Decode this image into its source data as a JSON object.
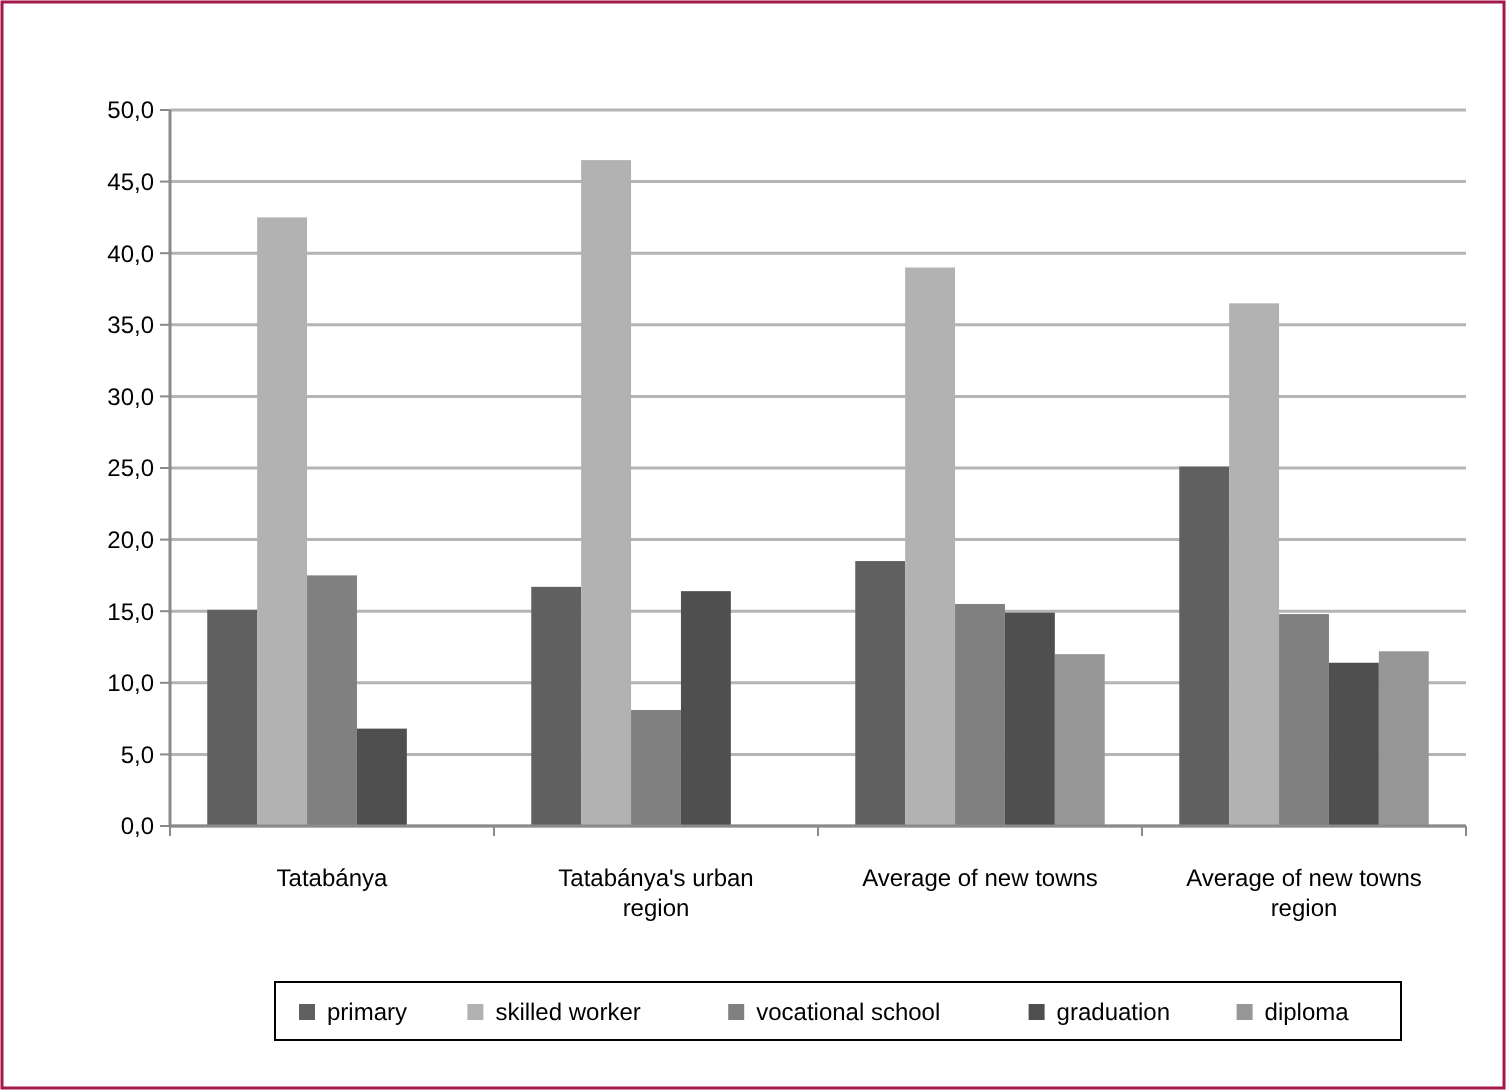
{
  "chart_data": {
    "type": "bar",
    "categories": [
      "Tatabánya",
      "Tatabánya's urban region",
      "Average of new towns",
      "Average of new towns region"
    ],
    "series": [
      {
        "name": "primary",
        "color": "#606060",
        "values": [
          15.1,
          16.7,
          18.5,
          25.1
        ]
      },
      {
        "name": "skilled worker",
        "color": "#b2b2b2",
        "values": [
          42.5,
          46.5,
          39.0,
          36.5
        ]
      },
      {
        "name": "vocational school",
        "color": "#808080",
        "values": [
          17.5,
          8.1,
          15.5,
          14.8
        ]
      },
      {
        "name": "graduation",
        "color": "#4f4f4f",
        "values": [
          6.8,
          16.4,
          14.9,
          11.4
        ]
      },
      {
        "name": "diploma",
        "color": "#969696",
        "values": [
          null,
          null,
          12.0,
          12.2
        ]
      }
    ],
    "ylim": [
      0,
      50
    ],
    "yticks": [
      {
        "value": 0,
        "label": "0,0"
      },
      {
        "value": 5,
        "label": "5,0"
      },
      {
        "value": 10,
        "label": "10,0"
      },
      {
        "value": 15,
        "label": "15,0"
      },
      {
        "value": 20,
        "label": "20,0"
      },
      {
        "value": 25,
        "label": "25,0"
      },
      {
        "value": 30,
        "label": "30,0"
      },
      {
        "value": 35,
        "label": "35,0"
      },
      {
        "value": 40,
        "label": "40,0"
      },
      {
        "value": 45,
        "label": "45,0"
      },
      {
        "value": 50,
        "label": "50,0"
      }
    ],
    "grid": "y",
    "legend": "bottom"
  }
}
